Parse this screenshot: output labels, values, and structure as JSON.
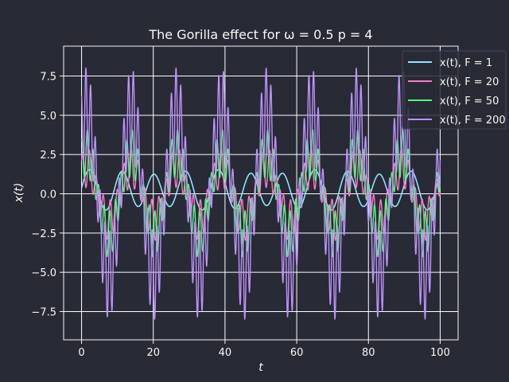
{
  "chart_data": {
    "type": "line",
    "title": "The Gorilla effect for ω = 0.5 p = 4",
    "xlabel": "t",
    "ylabel": "x(t)",
    "xlim": [
      -5,
      105
    ],
    "ylim": [
      -9.3,
      9.4
    ],
    "xticks": [
      0,
      20,
      40,
      60,
      80,
      100
    ],
    "xtick_labels": [
      "0",
      "20",
      "40",
      "60",
      "80",
      "100"
    ],
    "yticks": [
      -7.5,
      -5.0,
      -2.5,
      0.0,
      2.5,
      5.0,
      7.5
    ],
    "ytick_labels": [
      "−7.5",
      "−5.0",
      "−2.5",
      "0.0",
      "2.5",
      "5.0",
      "7.5"
    ],
    "grid": true,
    "legend_position": "top-right",
    "colors": {
      "background": "#282a36",
      "grid": "#ffffff",
      "spine": "#f8f8f2",
      "text": "#f8f8f2"
    },
    "series": [
      {
        "name": "x(t), F = 1",
        "color": "#8be9fd",
        "slow_amplitude": 0.15,
        "fast_amplitude": 1.15,
        "x_range": [
          0,
          100
        ],
        "offset": 0.25
      },
      {
        "name": "x(t), F = 20",
        "color": "#ff79c6",
        "slow_amplitude": 1.7,
        "fast_amplitude": 1.3,
        "x_range": [
          0,
          100
        ],
        "offset": 0.0
      },
      {
        "name": "x(t), F = 50",
        "color": "#50fa7b",
        "slow_amplitude": 2.6,
        "fast_amplitude": 1.5,
        "x_range": [
          0,
          100
        ],
        "offset": 0.0
      },
      {
        "name": "x(t), F = 200",
        "color": "#bd93f9",
        "slow_amplitude": 5.2,
        "fast_amplitude": 2.8,
        "x_range": [
          0,
          100
        ],
        "offset": 0.0
      }
    ]
  }
}
